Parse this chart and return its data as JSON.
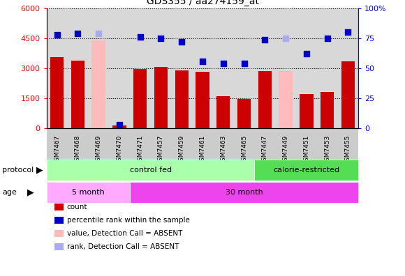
{
  "title": "GDS355 / aa274159_at",
  "samples": [
    "GSM7467",
    "GSM7468",
    "GSM7469",
    "GSM7470",
    "GSM7471",
    "GSM7457",
    "GSM7459",
    "GSM7461",
    "GSM7463",
    "GSM7465",
    "GSM7447",
    "GSM7449",
    "GSM7451",
    "GSM7453",
    "GSM7455"
  ],
  "counts": [
    3550,
    3400,
    4400,
    150,
    2980,
    3080,
    2880,
    2830,
    1620,
    1480,
    2850,
    2850,
    1700,
    1800,
    3350
  ],
  "absent_count": [
    false,
    false,
    true,
    false,
    false,
    false,
    false,
    false,
    false,
    false,
    false,
    true,
    false,
    false,
    false
  ],
  "ranks": [
    78,
    79,
    79,
    3,
    76,
    75,
    72,
    56,
    54,
    54,
    74,
    75,
    62,
    75,
    80
  ],
  "absent_rank": [
    false,
    false,
    true,
    false,
    false,
    false,
    false,
    false,
    false,
    false,
    false,
    true,
    false,
    false,
    false
  ],
  "ylim_left": [
    0,
    6000
  ],
  "ylim_right": [
    0,
    100
  ],
  "yticks_left": [
    0,
    1500,
    3000,
    4500,
    6000
  ],
  "yticks_right": [
    0,
    25,
    50,
    75,
    100
  ],
  "bar_color_present": "#cc0000",
  "bar_color_absent": "#ffbbbb",
  "dot_color_present": "#0000cc",
  "dot_color_absent": "#aaaaee",
  "main_bg": "#d8d8d8",
  "xtick_bg": "#cccccc",
  "protocol_groups": [
    {
      "label": "control fed",
      "start": 0,
      "end": 10,
      "color": "#aaffaa"
    },
    {
      "label": "calorie-restricted",
      "start": 10,
      "end": 15,
      "color": "#55dd55"
    }
  ],
  "age_groups": [
    {
      "label": "5 month",
      "start": 0,
      "end": 4,
      "color": "#ffaaff"
    },
    {
      "label": "30 month",
      "start": 4,
      "end": 15,
      "color": "#ee44ee"
    }
  ],
  "legend_items": [
    {
      "label": "count",
      "color": "#cc0000"
    },
    {
      "label": "percentile rank within the sample",
      "color": "#0000cc"
    },
    {
      "label": "value, Detection Call = ABSENT",
      "color": "#ffbbbb"
    },
    {
      "label": "rank, Detection Call = ABSENT",
      "color": "#aaaaee"
    }
  ],
  "bar_width": 0.65,
  "dot_size": 35
}
